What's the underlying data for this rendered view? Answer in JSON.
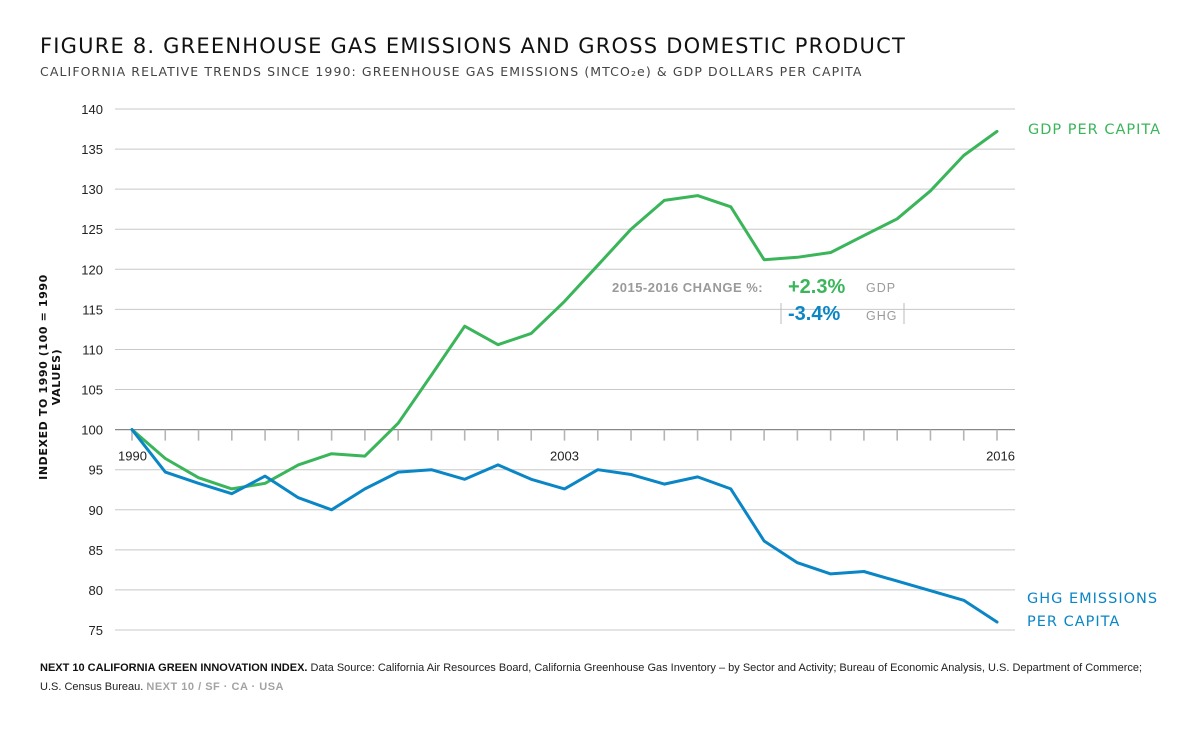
{
  "title": "FIGURE 8. GREENHOUSE GAS EMISSIONS AND GROSS DOMESTIC PRODUCT",
  "subtitle": "CALIFORNIA RELATIVE TRENDS SINCE 1990: GREENHOUSE GAS EMISSIONS (MTCO₂e) & GDP DOLLARS PER CAPITA",
  "colors": {
    "gdp": "#3ab55a",
    "ghg": "#0a86c6",
    "grid": "#c8c8c8",
    "axis": "#888888",
    "muted": "#9a9a9a"
  },
  "chart_data": {
    "type": "line",
    "ylabel": "INDEXED TO 1990 (100 = 1990 VALUES)",
    "ylim": [
      75,
      140
    ],
    "yticks": [
      75,
      80,
      85,
      90,
      95,
      100,
      105,
      110,
      115,
      120,
      125,
      130,
      135,
      140
    ],
    "xlim": [
      1990,
      2016
    ],
    "x": [
      1990,
      1991,
      1992,
      1993,
      1994,
      1995,
      1996,
      1997,
      1998,
      1999,
      2000,
      2001,
      2002,
      2003,
      2004,
      2005,
      2006,
      2007,
      2008,
      2009,
      2010,
      2011,
      2012,
      2013,
      2014,
      2015,
      2016
    ],
    "xtick_labels": [
      {
        "x": 1990,
        "label": "1990"
      },
      {
        "x": 2003,
        "label": "2003"
      },
      {
        "x": 2016,
        "label": "2016"
      }
    ],
    "grid": "horizontal",
    "series": [
      {
        "name": "GDP PER CAPITA",
        "color": "#3ab55a",
        "values": [
          100,
          96.4,
          94.0,
          92.6,
          93.3,
          95.6,
          97.0,
          96.7,
          100.8,
          106.8,
          112.9,
          110.6,
          112.0,
          116.0,
          120.5,
          125.0,
          128.6,
          129.2,
          127.8,
          121.2,
          121.5,
          122.1,
          124.2,
          126.3,
          129.8,
          134.2,
          137.2
        ]
      },
      {
        "name": "GHG EMISSIONS PER CAPITA",
        "color": "#0a86c6",
        "values": [
          100,
          94.7,
          93.3,
          92.0,
          94.2,
          91.5,
          90.0,
          92.6,
          94.7,
          95.0,
          93.8,
          95.6,
          93.8,
          92.6,
          95.0,
          94.4,
          93.2,
          94.1,
          92.6,
          86.1,
          83.4,
          82.0,
          82.3,
          81.1,
          79.9,
          78.7,
          76.0
        ]
      }
    ],
    "annotation": {
      "prefix": "2015-2016 CHANGE %:",
      "gdp_change": "+2.3%",
      "gdp_tag": "GDP",
      "ghg_change": "-3.4%",
      "ghg_tag": "GHG"
    }
  },
  "series_labels": {
    "gdp": "GDP PER CAPITA",
    "ghg_line1": "GHG EMISSIONS",
    "ghg_line2": "PER CAPITA"
  },
  "footer": {
    "bold_lead": "NEXT 10 CALIFORNIA GREEN INNOVATION INDEX.",
    "source_text": " Data Source: California Air Resources Board, California Greenhouse Gas Inventory – by Sector and Activity; Bureau of Economic Analysis, U.S. Department of Commerce; U.S. Census Bureau. ",
    "brand": "NEXT 10  /  SF · CA · USA"
  }
}
